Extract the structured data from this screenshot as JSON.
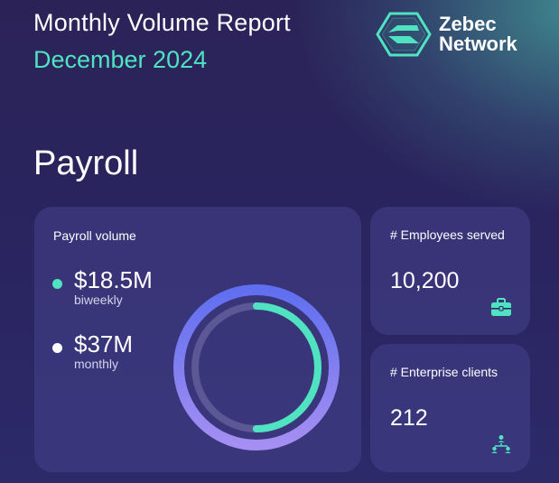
{
  "header": {
    "title": "Monthly Volume Report",
    "subtitle": "December 2024"
  },
  "brand": {
    "line1": "Zebec",
    "line2": "Network",
    "logo_icon": "zebec-hexagon-logo-icon"
  },
  "section": {
    "title": "Payroll"
  },
  "payroll": {
    "label": "Payroll volume",
    "metrics": [
      {
        "value": "$18.5M",
        "period": "biweekly",
        "color": "#4fe3c1"
      },
      {
        "value": "$37M",
        "period": "monthly",
        "color": "#ffffff"
      }
    ],
    "ring_share": 0.5
  },
  "employees": {
    "label": "# Employees served",
    "value": "10,200",
    "icon": "briefcase-icon"
  },
  "enterprise": {
    "label": "# Enterprise clients",
    "value": "212",
    "icon": "org-chart-icon"
  },
  "colors": {
    "accent": "#4fe3c1",
    "ring_outer": "#7b6bf0",
    "ring_inner_track": "#6e6aa8"
  }
}
